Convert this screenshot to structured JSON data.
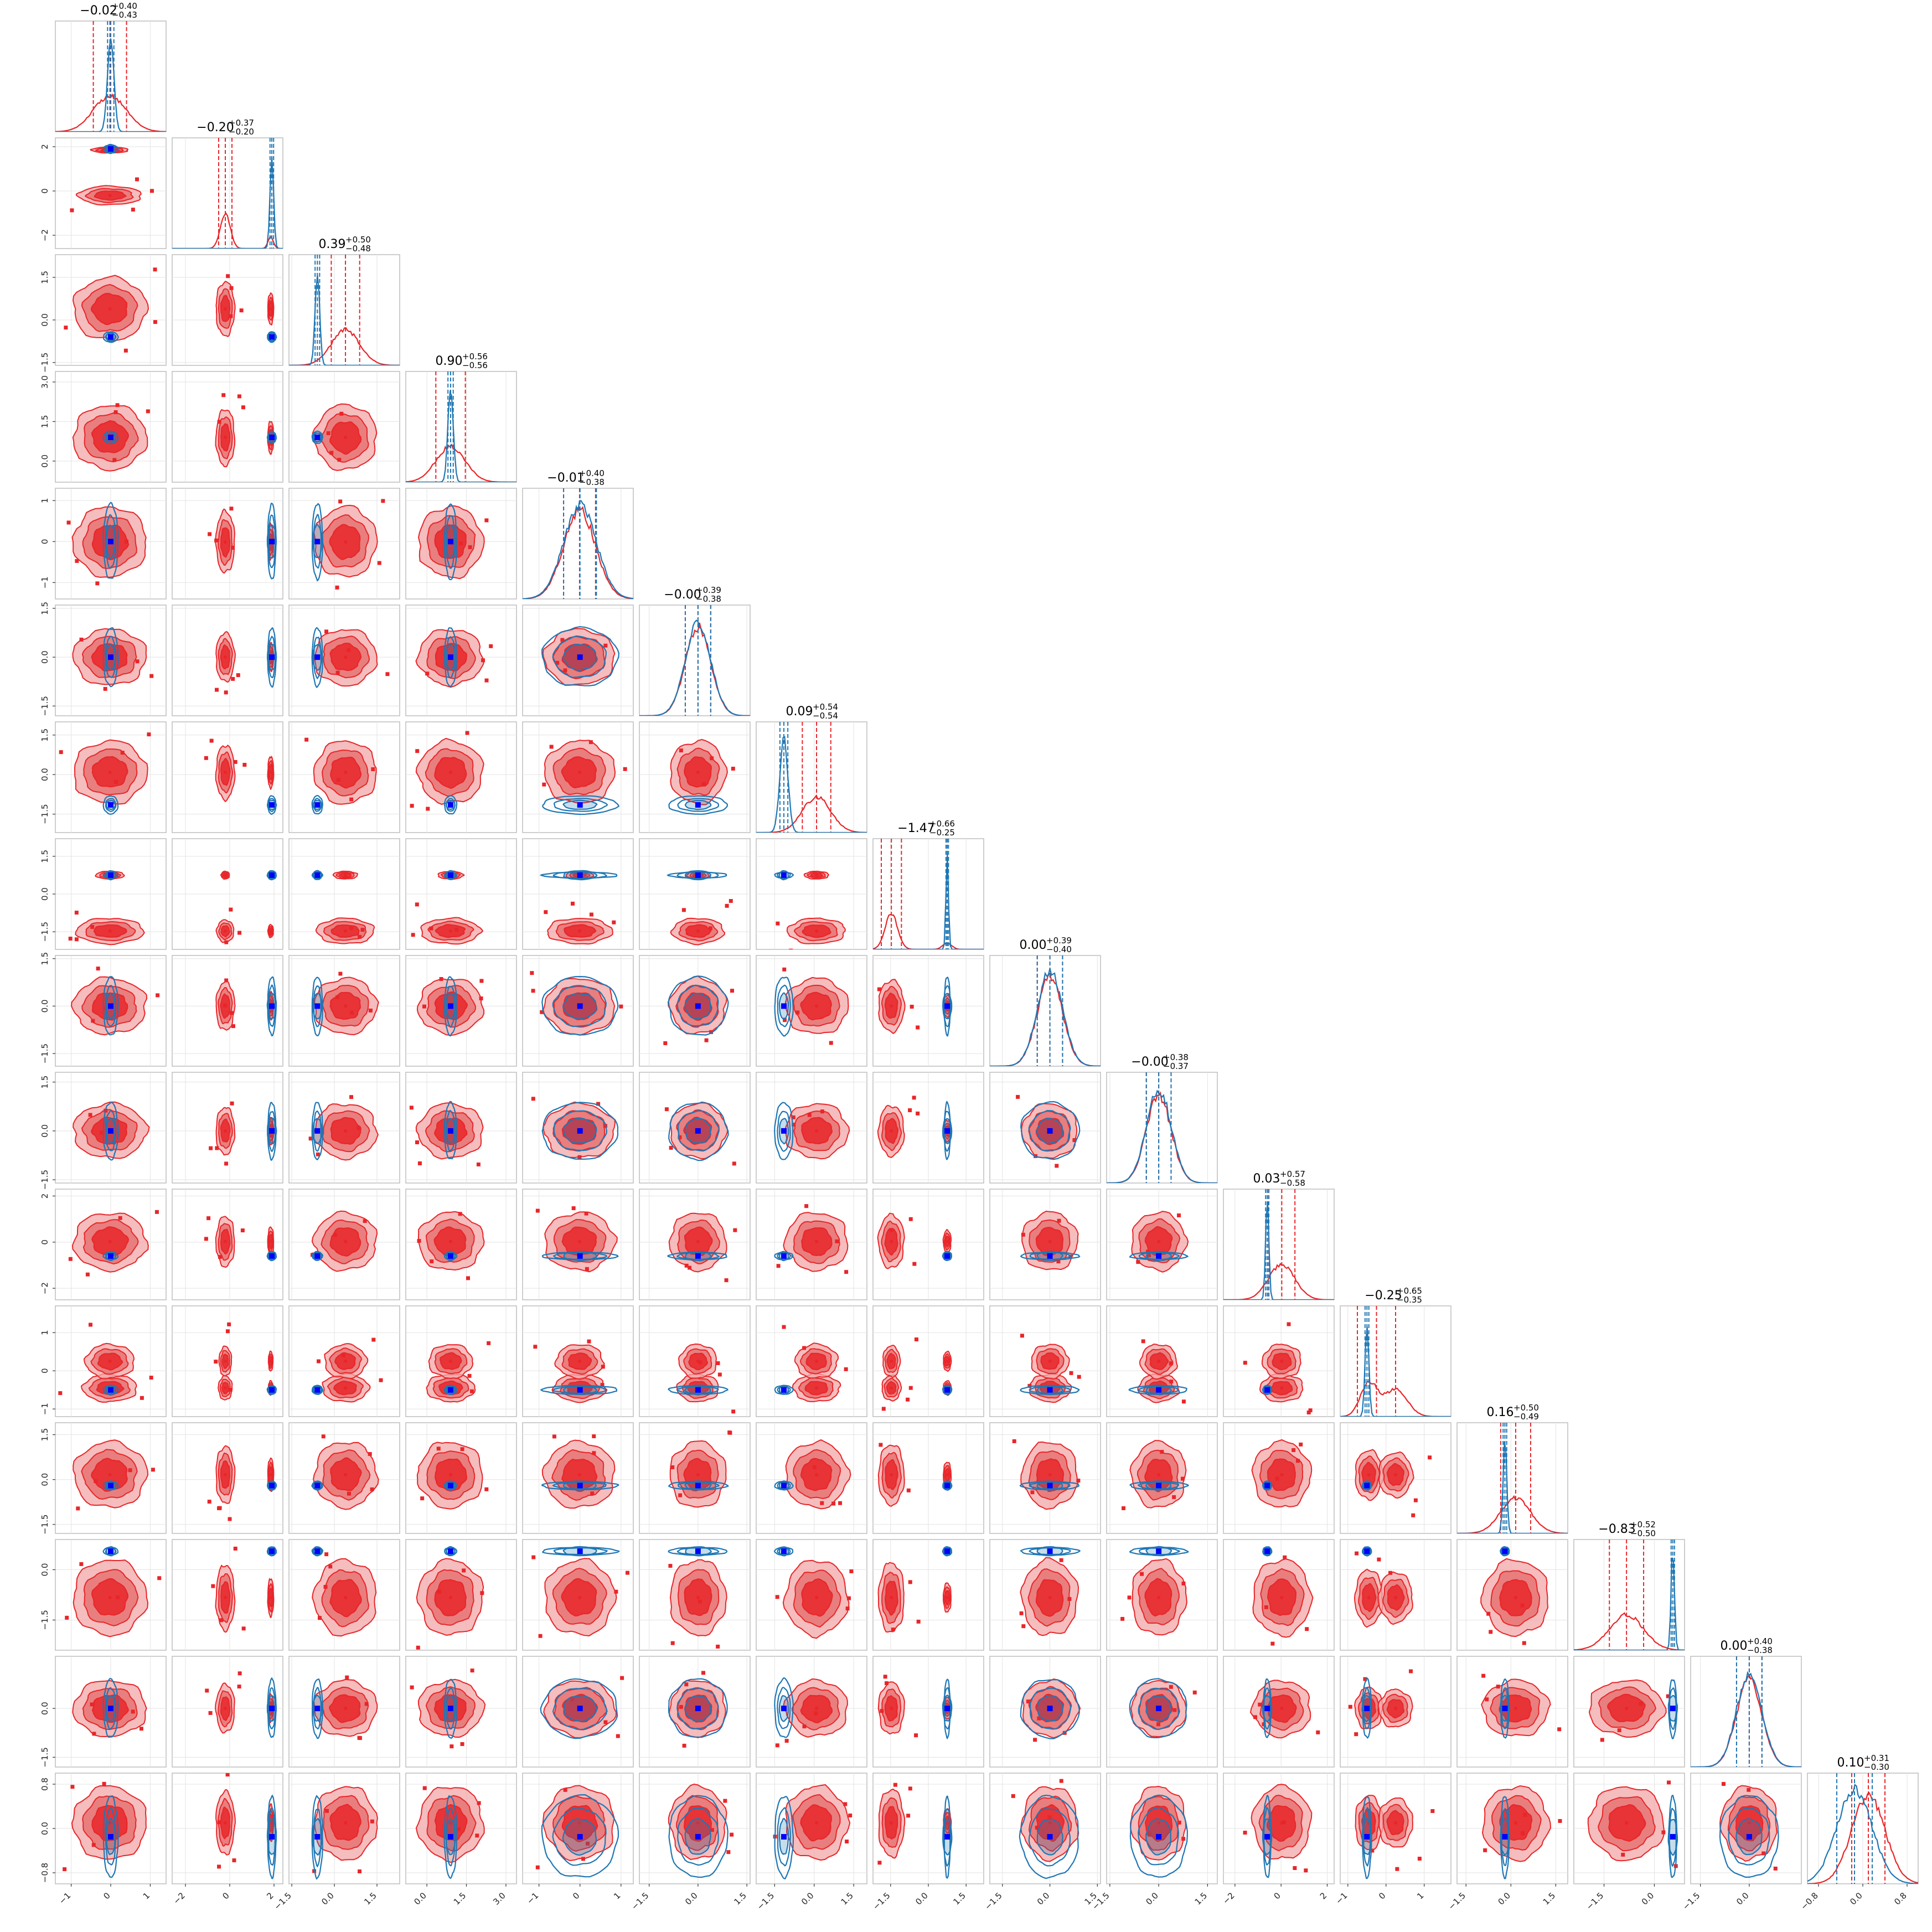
{
  "chart_data": {
    "type": "corner",
    "n_params": 16,
    "colors": {
      "red": "#e8262a",
      "red_light": "#f2a7a7",
      "red_mid": "#e46a6a",
      "blue": "#1f77b4",
      "truth": "#0000ff"
    },
    "titles": [
      {
        "median": "−0.02",
        "plus": "+0.40",
        "minus": "−0.43"
      },
      {
        "median": "−0.20",
        "plus": "+0.37",
        "minus": "−0.20"
      },
      {
        "median": "0.39",
        "plus": "+0.50",
        "minus": "−0.48"
      },
      {
        "median": "0.90",
        "plus": "+0.56",
        "minus": "−0.56"
      },
      {
        "median": "−0.01",
        "plus": "+0.40",
        "minus": "−0.38"
      },
      {
        "median": "−0.00",
        "plus": "+0.39",
        "minus": "−0.38"
      },
      {
        "median": "0.09",
        "plus": "+0.54",
        "minus": "−0.54"
      },
      {
        "median": "−1.47",
        "plus": "+0.66",
        "minus": "−0.25"
      },
      {
        "median": "0.00",
        "plus": "+0.39",
        "minus": "−0.40"
      },
      {
        "median": "−0.00",
        "plus": "+0.38",
        "minus": "−0.37"
      },
      {
        "median": "0.03",
        "plus": "+0.57",
        "minus": "−0.58"
      },
      {
        "median": "−0.25",
        "plus": "+0.65",
        "minus": "−0.35"
      },
      {
        "median": "0.16",
        "plus": "+0.50",
        "minus": "−0.49"
      },
      {
        "median": "−0.83",
        "plus": "+0.52",
        "minus": "−0.50"
      },
      {
        "median": "0.00",
        "plus": "+0.40",
        "minus": "−0.38"
      },
      {
        "median": "0.10",
        "plus": "+0.31",
        "minus": "−0.30"
      }
    ],
    "params": [
      {
        "range": [
          -1.4,
          1.4
        ],
        "ticks": [
          -1,
          0,
          1
        ],
        "tick_labels": [
          "−1",
          "0",
          "1"
        ],
        "red_center": -0.02,
        "red_sd": 0.42,
        "blue_center": 0.0,
        "blue_sd": 0.08,
        "red_modes": [
          [
            -0.02,
            1.0,
            0.42
          ]
        ],
        "blue_modes": [
          [
            0.0,
            1.0,
            0.08
          ]
        ]
      },
      {
        "range": [
          -2.6,
          2.4
        ],
        "ticks": [
          -2,
          0,
          2
        ],
        "tick_labels": [
          "−2",
          "0",
          "2"
        ],
        "red_center": -0.2,
        "red_sd": 0.3,
        "blue_center": 1.9,
        "blue_sd": 0.08,
        "red_modes": [
          [
            -0.2,
            0.75,
            0.22
          ],
          [
            1.85,
            0.25,
            0.12
          ]
        ],
        "blue_modes": [
          [
            1.9,
            1.0,
            0.08
          ]
        ]
      },
      {
        "range": [
          -1.6,
          2.3
        ],
        "ticks": [
          -1.5,
          0.0,
          1.5
        ],
        "tick_labels": [
          "−1.5",
          "0.0",
          "1.5"
        ],
        "red_center": 0.39,
        "red_sd": 0.5,
        "blue_center": -0.6,
        "blue_sd": 0.08,
        "red_modes": [
          [
            0.39,
            1.0,
            0.5
          ]
        ],
        "blue_modes": [
          [
            -0.6,
            1.0,
            0.08
          ]
        ]
      },
      {
        "range": [
          -0.8,
          3.4
        ],
        "ticks": [
          0.0,
          1.5,
          3.0
        ],
        "tick_labels": [
          "0.0",
          "1.5",
          "3.0"
        ],
        "red_center": 0.9,
        "red_sd": 0.56,
        "blue_center": 0.9,
        "blue_sd": 0.1,
        "red_modes": [
          [
            0.9,
            1.0,
            0.56
          ]
        ],
        "blue_modes": [
          [
            0.9,
            1.0,
            0.1
          ]
        ]
      },
      {
        "range": [
          -1.4,
          1.3
        ],
        "ticks": [
          -1,
          0,
          1
        ],
        "tick_labels": [
          "−1",
          "0",
          "1"
        ],
        "red_center": -0.01,
        "red_sd": 0.39,
        "blue_center": 0.0,
        "blue_sd": 0.4,
        "red_modes": [
          [
            -0.01,
            1.0,
            0.39
          ]
        ],
        "blue_modes": [
          [
            0.0,
            1.0,
            0.4
          ]
        ]
      },
      {
        "range": [
          -1.8,
          1.6
        ],
        "ticks": [
          -1.5,
          0.0,
          1.5
        ],
        "tick_labels": [
          "−1.5",
          "0.0",
          "1.5"
        ],
        "red_center": 0.0,
        "red_sd": 0.39,
        "blue_center": 0.0,
        "blue_sd": 0.39,
        "red_modes": [
          [
            0.0,
            1.0,
            0.39
          ]
        ],
        "blue_modes": [
          [
            0.0,
            1.0,
            0.39
          ]
        ]
      },
      {
        "range": [
          -2.2,
          2.0
        ],
        "ticks": [
          -1.5,
          0.0,
          1.5
        ],
        "tick_labels": [
          "−1.5",
          "0.0",
          "1.5"
        ],
        "red_center": 0.09,
        "red_sd": 0.54,
        "blue_center": -1.15,
        "blue_sd": 0.15,
        "red_modes": [
          [
            0.09,
            1.0,
            0.54
          ]
        ],
        "blue_modes": [
          [
            -1.15,
            1.0,
            0.15
          ]
        ]
      },
      {
        "range": [
          -2.2,
          2.2
        ],
        "ticks": [
          -1.5,
          0.0,
          1.5
        ],
        "tick_labels": [
          "−1.5",
          "0.0",
          "1.5"
        ],
        "red_center": -1.47,
        "red_sd": 0.4,
        "blue_center": 0.75,
        "blue_sd": 0.05,
        "red_modes": [
          [
            -1.47,
            0.85,
            0.25
          ],
          [
            0.75,
            0.15,
            0.18
          ]
        ],
        "blue_modes": [
          [
            0.75,
            1.0,
            0.05
          ]
        ]
      },
      {
        "range": [
          -1.9,
          1.6
        ],
        "ticks": [
          -1.5,
          0.0,
          1.5
        ],
        "tick_labels": [
          "−1.5",
          "0.0",
          "1.5"
        ],
        "red_center": 0.0,
        "red_sd": 0.4,
        "blue_center": 0.0,
        "blue_sd": 0.4,
        "red_modes": [
          [
            0.0,
            1.0,
            0.4
          ]
        ],
        "blue_modes": [
          [
            0.0,
            1.0,
            0.4
          ]
        ]
      },
      {
        "range": [
          -1.6,
          1.8
        ],
        "ticks": [
          -1.5,
          0.0,
          1.5
        ],
        "tick_labels": [
          "−1.5",
          "0.0",
          "1.5"
        ],
        "red_center": 0.0,
        "red_sd": 0.38,
        "blue_center": 0.0,
        "blue_sd": 0.38,
        "red_modes": [
          [
            0.0,
            1.0,
            0.38
          ]
        ],
        "blue_modes": [
          [
            0.0,
            1.0,
            0.38
          ]
        ]
      },
      {
        "range": [
          -2.5,
          2.3
        ],
        "ticks": [
          -2,
          0,
          2
        ],
        "tick_labels": [
          "−2",
          "0",
          "2"
        ],
        "red_center": 0.03,
        "red_sd": 0.57,
        "blue_center": -0.6,
        "blue_sd": 0.07,
        "red_modes": [
          [
            0.03,
            1.0,
            0.57
          ]
        ],
        "blue_modes": [
          [
            -0.6,
            1.0,
            0.07
          ]
        ]
      },
      {
        "range": [
          -1.2,
          1.7
        ],
        "ticks": [
          -1,
          0,
          1
        ],
        "tick_labels": [
          "−1",
          "0",
          "1"
        ],
        "red_center": -0.25,
        "red_sd": 0.5,
        "blue_center": -0.5,
        "blue_sd": 0.05,
        "red_modes": [
          [
            -0.45,
            0.55,
            0.22
          ],
          [
            0.25,
            0.45,
            0.3
          ]
        ],
        "blue_modes": [
          [
            -0.5,
            1.0,
            0.05
          ]
        ]
      },
      {
        "range": [
          -1.8,
          1.9
        ],
        "ticks": [
          -1.5,
          0.0,
          1.5
        ],
        "tick_labels": [
          "−1.5",
          "0.0",
          "1.5"
        ],
        "red_center": 0.16,
        "red_sd": 0.5,
        "blue_center": -0.2,
        "blue_sd": 0.06,
        "red_modes": [
          [
            0.16,
            1.0,
            0.5
          ]
        ],
        "blue_modes": [
          [
            -0.2,
            1.0,
            0.06
          ]
        ]
      },
      {
        "range": [
          -2.4,
          0.9
        ],
        "ticks": [
          -1.5,
          0.0
        ],
        "tick_labels": [
          "−1.5",
          "0.0"
        ],
        "red_center": -0.83,
        "red_sd": 0.51,
        "blue_center": 0.55,
        "blue_sd": 0.05,
        "red_modes": [
          [
            -0.83,
            1.0,
            0.51
          ]
        ],
        "blue_modes": [
          [
            0.55,
            1.0,
            0.05
          ]
        ]
      },
      {
        "range": [
          -1.8,
          1.6
        ],
        "ticks": [
          -1.5,
          0.0
        ],
        "tick_labels": [
          "−1.5",
          "0.0"
        ],
        "red_center": 0.0,
        "red_sd": 0.39,
        "blue_center": 0.0,
        "blue_sd": 0.39,
        "red_modes": [
          [
            0.0,
            1.0,
            0.39
          ]
        ],
        "blue_modes": [
          [
            0.0,
            1.0,
            0.39
          ]
        ]
      },
      {
        "range": [
          -1.0,
          1.0
        ],
        "ticks": [
          -0.8,
          0.0,
          0.8
        ],
        "tick_labels": [
          "−0.8",
          "0.0",
          "0.8"
        ],
        "red_center": 0.1,
        "red_sd": 0.3,
        "blue_center": -0.15,
        "blue_sd": 0.32,
        "red_modes": [
          [
            0.1,
            1.0,
            0.3
          ]
        ],
        "blue_modes": [
          [
            -0.15,
            1.0,
            0.32
          ]
        ]
      }
    ]
  }
}
